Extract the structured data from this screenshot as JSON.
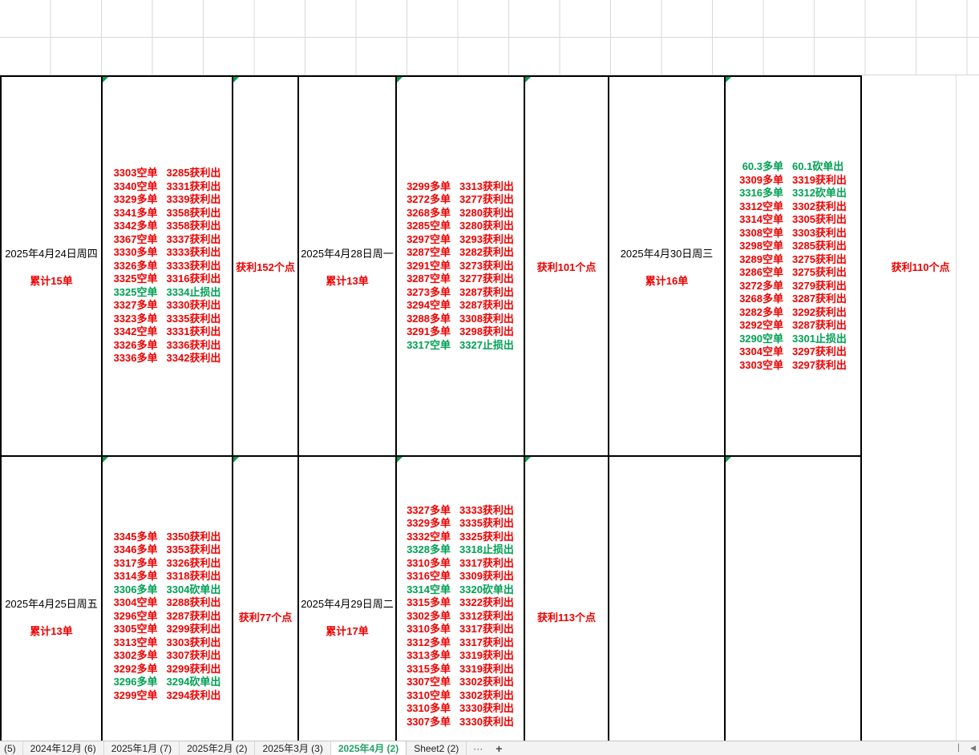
{
  "colors": {
    "red": "#ee0000",
    "green": "#00a054",
    "active_tab": "#21a366",
    "border": "#000000"
  },
  "rows": [
    {
      "groups": [
        {
          "date": "2025年4月24日周四",
          "summary": "累计15单",
          "profit": "获利152个点",
          "trades": [
            {
              "entry": "3303空单",
              "exit": "3285获利出",
              "cls": "red"
            },
            {
              "entry": "3340空单",
              "exit": "3331获利出",
              "cls": "red"
            },
            {
              "entry": "3329多单",
              "exit": "3339获利出",
              "cls": "red"
            },
            {
              "entry": "3341多单",
              "exit": "3358获利出",
              "cls": "red"
            },
            {
              "entry": "3342多单",
              "exit": "3358获利出",
              "cls": "red"
            },
            {
              "entry": "3367空单",
              "exit": "3337获利出",
              "cls": "red"
            },
            {
              "entry": "3330多单",
              "exit": "3333获利出",
              "cls": "red"
            },
            {
              "entry": "3326多单",
              "exit": "3333获利出",
              "cls": "red"
            },
            {
              "entry": "3325空单",
              "exit": "3316获利出",
              "cls": "red"
            },
            {
              "entry": "3325空单",
              "exit": "3334止损出",
              "cls": "green"
            },
            {
              "entry": "3327多单",
              "exit": "3330获利出",
              "cls": "red"
            },
            {
              "entry": "3323多单",
              "exit": "3335获利出",
              "cls": "red"
            },
            {
              "entry": "3342空单",
              "exit": "3331获利出",
              "cls": "red"
            },
            {
              "entry": "3326多单",
              "exit": "3336获利出",
              "cls": "red"
            },
            {
              "entry": "3336多单",
              "exit": "3342获利出",
              "cls": "red"
            }
          ]
        },
        {
          "date": "2025年4月28日周一",
          "summary": "累计13单",
          "profit": "获利101个点",
          "trades": [
            {
              "entry": "3299多单",
              "exit": "3313获利出",
              "cls": "red"
            },
            {
              "entry": "3272多单",
              "exit": "3277获利出",
              "cls": "red"
            },
            {
              "entry": "3268多单",
              "exit": "3280获利出",
              "cls": "red"
            },
            {
              "entry": "3285空单",
              "exit": "3280获利出",
              "cls": "red"
            },
            {
              "entry": "3297空单",
              "exit": "3293获利出",
              "cls": "red"
            },
            {
              "entry": "3287空单",
              "exit": "3282获利出",
              "cls": "red"
            },
            {
              "entry": "3291空单",
              "exit": "3273获利出",
              "cls": "red"
            },
            {
              "entry": "3287空单",
              "exit": "3277获利出",
              "cls": "red"
            },
            {
              "entry": "3273多单",
              "exit": "3287获利出",
              "cls": "red"
            },
            {
              "entry": "3294空单",
              "exit": "3287获利出",
              "cls": "red"
            },
            {
              "entry": "3288多单",
              "exit": "3308获利出",
              "cls": "red"
            },
            {
              "entry": "3291多单",
              "exit": "3298获利出",
              "cls": "red"
            },
            {
              "entry": "3317空单",
              "exit": "3327止损出",
              "cls": "green"
            }
          ]
        },
        {
          "date": "2025年4月30日周三",
          "summary": "累计16单",
          "profit": "获利110个点",
          "trades": [
            {
              "entry": "60.3多单",
              "exit": "60.1砍单出",
              "cls": "green"
            },
            {
              "entry": "3309多单",
              "exit": "3319获利出",
              "cls": "red"
            },
            {
              "entry": "3316多单",
              "exit": "3312砍单出",
              "cls": "green"
            },
            {
              "entry": "3312空单",
              "exit": "3302获利出",
              "cls": "red"
            },
            {
              "entry": "3314空单",
              "exit": "3305获利出",
              "cls": "red"
            },
            {
              "entry": "3308空单",
              "exit": "3303获利出",
              "cls": "red"
            },
            {
              "entry": "3298空单",
              "exit": "3285获利出",
              "cls": "red"
            },
            {
              "entry": "3289空单",
              "exit": "3275获利出",
              "cls": "red"
            },
            {
              "entry": "3286空单",
              "exit": "3275获利出",
              "cls": "red"
            },
            {
              "entry": "3272多单",
              "exit": "3279获利出",
              "cls": "red"
            },
            {
              "entry": "3268多单",
              "exit": "3287获利出",
              "cls": "red"
            },
            {
              "entry": "3282多单",
              "exit": "3292获利出",
              "cls": "red"
            },
            {
              "entry": "3292空单",
              "exit": "3287获利出",
              "cls": "red"
            },
            {
              "entry": "3290空单",
              "exit": "3301止损出",
              "cls": "green"
            },
            {
              "entry": "3304空单",
              "exit": "3297获利出",
              "cls": "red"
            },
            {
              "entry": "3303空单",
              "exit": "3297获利出",
              "cls": "red"
            }
          ]
        }
      ]
    },
    {
      "groups": [
        {
          "date": "2025年4月25日周五",
          "summary": "累计13单",
          "profit": "获利77个点",
          "trades": [
            {
              "entry": "3345多单",
              "exit": "3350获利出",
              "cls": "red"
            },
            {
              "entry": "3346多单",
              "exit": "3353获利出",
              "cls": "red"
            },
            {
              "entry": "3317多单",
              "exit": "3326获利出",
              "cls": "red"
            },
            {
              "entry": "3314多单",
              "exit": "3318获利出",
              "cls": "red"
            },
            {
              "entry": "3306多单",
              "exit": "3304砍单出",
              "cls": "green"
            },
            {
              "entry": "3304空单",
              "exit": "3288获利出",
              "cls": "red"
            },
            {
              "entry": "3296空单",
              "exit": "3287获利出",
              "cls": "red"
            },
            {
              "entry": "3305空单",
              "exit": "3299获利出",
              "cls": "red"
            },
            {
              "entry": "3313空单",
              "exit": "3303获利出",
              "cls": "red"
            },
            {
              "entry": "3302多单",
              "exit": "3307获利出",
              "cls": "red"
            },
            {
              "entry": "3292多单",
              "exit": "3299获利出",
              "cls": "red"
            },
            {
              "entry": "3296多单",
              "exit": "3294砍单出",
              "cls": "green"
            },
            {
              "entry": "3299空单",
              "exit": "3294获利出",
              "cls": "red"
            }
          ]
        },
        {
          "date": "2025年4月29日周二",
          "summary": "累计17单",
          "profit": "获利113个点",
          "trades": [
            {
              "entry": "3327多单",
              "exit": "3333获利出",
              "cls": "red"
            },
            {
              "entry": "3329多单",
              "exit": "3335获利出",
              "cls": "red"
            },
            {
              "entry": "3332空单",
              "exit": "3325获利出",
              "cls": "red"
            },
            {
              "entry": "3328多单",
              "exit": "3318止损出",
              "cls": "green"
            },
            {
              "entry": "3310多单",
              "exit": "3317获利出",
              "cls": "red"
            },
            {
              "entry": "3316空单",
              "exit": "3309获利出",
              "cls": "red"
            },
            {
              "entry": "3314空单",
              "exit": "3320砍单出",
              "cls": "green"
            },
            {
              "entry": "3315多单",
              "exit": "3322获利出",
              "cls": "red"
            },
            {
              "entry": "3302多单",
              "exit": "3312获利出",
              "cls": "red"
            },
            {
              "entry": "3310多单",
              "exit": "3317获利出",
              "cls": "red"
            },
            {
              "entry": "3312多单",
              "exit": "3317获利出",
              "cls": "red"
            },
            {
              "entry": "3313多单",
              "exit": "3319获利出",
              "cls": "red"
            },
            {
              "entry": "3315多单",
              "exit": "3319获利出",
              "cls": "red"
            },
            {
              "entry": "3307空单",
              "exit": "3302获利出",
              "cls": "red"
            },
            {
              "entry": "3310空单",
              "exit": "3302获利出",
              "cls": "red"
            },
            {
              "entry": "3310多单",
              "exit": "3330获利出",
              "cls": "red"
            },
            {
              "entry": "3307多单",
              "exit": "3330获利出",
              "cls": "red"
            }
          ]
        },
        {
          "date": "",
          "summary": "",
          "profit": "",
          "trades": []
        }
      ]
    }
  ],
  "sheet_tabs": {
    "partial_left": "(5)",
    "tabs": [
      {
        "label": "2024年12月 (6)",
        "cls": ""
      },
      {
        "label": "2025年1月 (7)",
        "cls": ""
      },
      {
        "label": "2025年2月 (2)",
        "cls": ""
      },
      {
        "label": "2025年3月 (3)",
        "cls": ""
      },
      {
        "label": "2025年4月 (2)",
        "cls": "active"
      },
      {
        "label": "Sheet2 (2)",
        "cls": ""
      }
    ],
    "more_label": "···",
    "add_label": "+",
    "tab_divider": "▏",
    "scroll_left": "◀"
  }
}
